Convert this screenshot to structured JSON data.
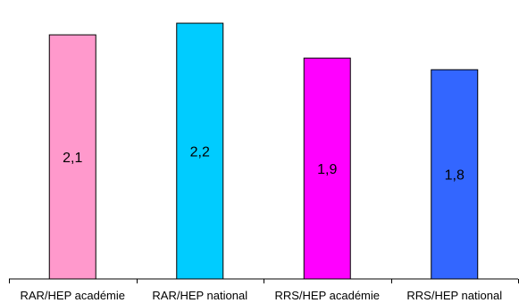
{
  "chart_data": {
    "type": "bar",
    "title": "",
    "xlabel": "",
    "ylabel": "",
    "categories": [
      "RAR/HEP académie",
      "RAR/HEP national",
      "RRS/HEP académie",
      "RRS/HEP national"
    ],
    "values": [
      2.1,
      2.2,
      1.9,
      1.8
    ],
    "value_labels": [
      "2,1",
      "2,2",
      "1,9",
      "1,8"
    ],
    "colors": [
      "#FF99CC",
      "#00CCFF",
      "#FF00FF",
      "#3366FF"
    ],
    "ylim": [
      0,
      2.3
    ],
    "grid": false,
    "legend": "none"
  }
}
